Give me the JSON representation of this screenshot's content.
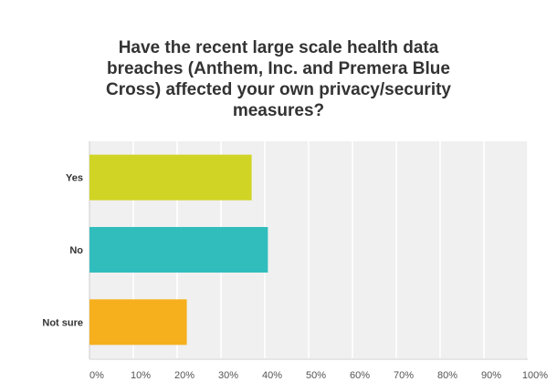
{
  "chart_data": {
    "type": "bar",
    "orientation": "horizontal",
    "title": "Have the recent large scale health data breaches (Anthem, Inc. and Premera Blue Cross) affected your own privacy/security measures?",
    "categories": [
      "Yes",
      "No",
      "Not sure"
    ],
    "values": [
      37.0,
      40.7,
      22.2
    ],
    "colors": [
      "#d0d424",
      "#32bdbd",
      "#f6b01e"
    ],
    "xlabel": "",
    "ylabel": "",
    "xlim": [
      0,
      100
    ],
    "ticks": [
      "0%",
      "10%",
      "20%",
      "30%",
      "40%",
      "50%",
      "60%",
      "70%",
      "80%",
      "90%",
      "100%"
    ],
    "grid": true,
    "legend": "none"
  }
}
